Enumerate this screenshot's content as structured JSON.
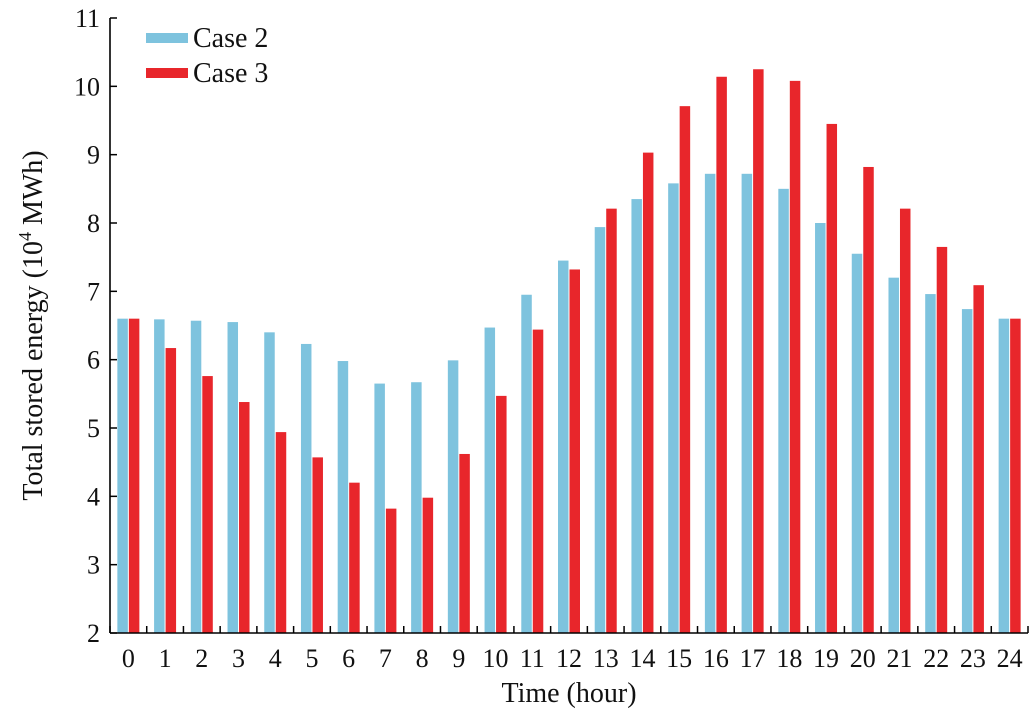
{
  "chart_data": {
    "type": "bar",
    "title": "",
    "xlabel": "Time (hour)",
    "ylabel_main": "Total stored energy (10",
    "ylabel_sup": "4",
    "ylabel_tail": " MWh)",
    "ylim": [
      2,
      11
    ],
    "yticks": [
      "2",
      "3",
      "4",
      "5",
      "6",
      "7",
      "8",
      "9",
      "10",
      "11"
    ],
    "categories": [
      "0",
      "1",
      "2",
      "3",
      "4",
      "5",
      "6",
      "7",
      "8",
      "9",
      "10",
      "11",
      "12",
      "13",
      "14",
      "15",
      "16",
      "17",
      "18",
      "19",
      "20",
      "21",
      "22",
      "23",
      "24"
    ],
    "legend_position": "top-left",
    "grid": false,
    "series": [
      {
        "name": "Case 2",
        "color": "#7ec3de",
        "values": [
          6.6,
          6.59,
          6.57,
          6.55,
          6.4,
          6.23,
          5.98,
          5.65,
          5.67,
          5.99,
          6.47,
          6.95,
          7.45,
          7.94,
          8.35,
          8.58,
          8.72,
          8.72,
          8.5,
          8.0,
          7.55,
          7.2,
          6.96,
          6.74,
          6.6
        ]
      },
      {
        "name": "Case 3",
        "color": "#e8262b",
        "values": [
          6.6,
          6.17,
          5.76,
          5.38,
          4.94,
          4.57,
          4.2,
          3.82,
          3.98,
          4.62,
          5.47,
          6.44,
          7.32,
          8.21,
          9.03,
          9.71,
          10.14,
          10.25,
          10.08,
          9.45,
          8.82,
          8.21,
          7.65,
          7.09,
          6.6
        ]
      }
    ]
  }
}
